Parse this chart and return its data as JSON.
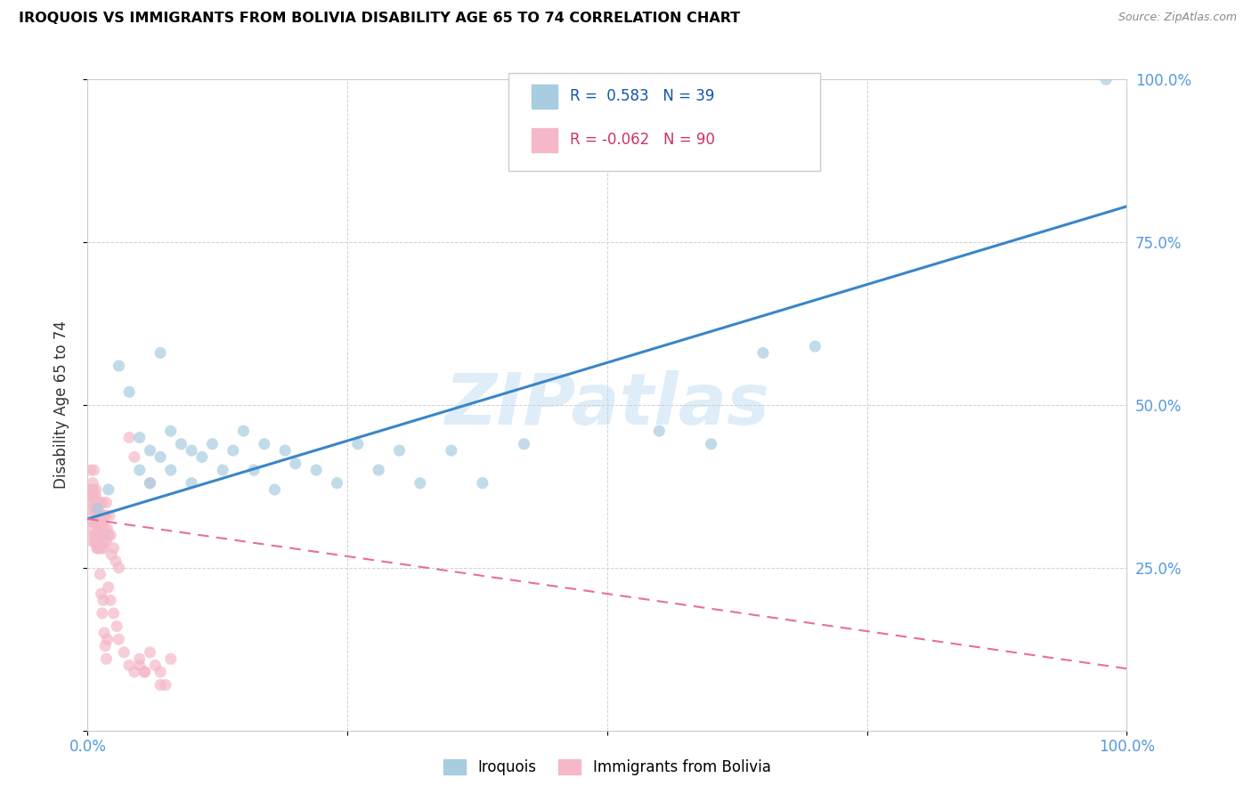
{
  "title": "IROQUOIS VS IMMIGRANTS FROM BOLIVIA DISABILITY AGE 65 TO 74 CORRELATION CHART",
  "source": "Source: ZipAtlas.com",
  "ylabel": "Disability Age 65 to 74",
  "xlim": [
    0,
    1.0
  ],
  "ylim": [
    0,
    1.0
  ],
  "xticks": [
    0.0,
    0.25,
    0.5,
    0.75,
    1.0
  ],
  "xticklabels": [
    "0.0%",
    "",
    "",
    "",
    "100.0%"
  ],
  "yticks": [
    0.0,
    0.25,
    0.5,
    0.75,
    1.0
  ],
  "yticklabels_right": [
    "",
    "25.0%",
    "50.0%",
    "75.0%",
    "100.0%"
  ],
  "legend_labels": [
    "Iroquois",
    "Immigrants from Bolivia"
  ],
  "iroquois_color": "#a8cce0",
  "bolivia_color": "#f4b8c8",
  "iroquois_line_color": "#3a86c8",
  "bolivia_line_color": "#e87090",
  "watermark_text": "ZIPatlas",
  "r_iroquois": 0.583,
  "n_iroquois": 39,
  "r_bolivia": -0.062,
  "n_bolivia": 90,
  "iroquois_trend_x0": 0.0,
  "iroquois_trend_y0": 0.325,
  "iroquois_trend_x1": 1.0,
  "iroquois_trend_y1": 0.805,
  "bolivia_trend_x0": 0.0,
  "bolivia_trend_y0": 0.325,
  "bolivia_trend_x1": 1.0,
  "bolivia_trend_y1": 0.095,
  "iroquois_x": [
    0.01,
    0.02,
    0.03,
    0.04,
    0.05,
    0.05,
    0.06,
    0.06,
    0.07,
    0.08,
    0.08,
    0.09,
    0.1,
    0.1,
    0.11,
    0.12,
    0.13,
    0.14,
    0.15,
    0.16,
    0.17,
    0.18,
    0.19,
    0.2,
    0.22,
    0.24,
    0.26,
    0.28,
    0.3,
    0.32,
    0.35,
    0.38,
    0.42,
    0.55,
    0.6,
    0.65,
    0.7,
    0.98,
    0.07
  ],
  "iroquois_y": [
    0.34,
    0.37,
    0.56,
    0.52,
    0.45,
    0.4,
    0.43,
    0.38,
    0.42,
    0.46,
    0.4,
    0.44,
    0.43,
    0.38,
    0.42,
    0.44,
    0.4,
    0.43,
    0.46,
    0.4,
    0.44,
    0.37,
    0.43,
    0.41,
    0.4,
    0.38,
    0.44,
    0.4,
    0.43,
    0.38,
    0.43,
    0.38,
    0.44,
    0.46,
    0.44,
    0.58,
    0.59,
    1.0,
    0.58
  ],
  "bolivia_x": [
    0.003,
    0.004,
    0.004,
    0.005,
    0.005,
    0.005,
    0.006,
    0.006,
    0.006,
    0.007,
    0.007,
    0.007,
    0.007,
    0.008,
    0.008,
    0.008,
    0.008,
    0.009,
    0.009,
    0.009,
    0.009,
    0.01,
    0.01,
    0.01,
    0.01,
    0.011,
    0.011,
    0.011,
    0.012,
    0.012,
    0.013,
    0.013,
    0.014,
    0.014,
    0.015,
    0.015,
    0.015,
    0.016,
    0.016,
    0.017,
    0.018,
    0.018,
    0.019,
    0.02,
    0.021,
    0.022,
    0.023,
    0.025,
    0.027,
    0.03,
    0.003,
    0.004,
    0.005,
    0.005,
    0.006,
    0.007,
    0.008,
    0.009,
    0.01,
    0.01,
    0.011,
    0.012,
    0.013,
    0.014,
    0.015,
    0.016,
    0.017,
    0.018,
    0.019,
    0.02,
    0.022,
    0.025,
    0.028,
    0.03,
    0.035,
    0.04,
    0.045,
    0.05,
    0.055,
    0.06,
    0.065,
    0.07,
    0.075,
    0.04,
    0.045,
    0.05,
    0.055,
    0.06,
    0.07,
    0.08
  ],
  "bolivia_y": [
    0.36,
    0.34,
    0.31,
    0.37,
    0.29,
    0.32,
    0.36,
    0.3,
    0.33,
    0.35,
    0.29,
    0.32,
    0.34,
    0.36,
    0.29,
    0.32,
    0.34,
    0.3,
    0.28,
    0.33,
    0.35,
    0.32,
    0.3,
    0.28,
    0.35,
    0.31,
    0.33,
    0.29,
    0.32,
    0.35,
    0.3,
    0.28,
    0.32,
    0.35,
    0.3,
    0.28,
    0.33,
    0.31,
    0.29,
    0.33,
    0.29,
    0.35,
    0.31,
    0.3,
    0.33,
    0.3,
    0.27,
    0.28,
    0.26,
    0.25,
    0.4,
    0.37,
    0.35,
    0.38,
    0.4,
    0.3,
    0.37,
    0.33,
    0.28,
    0.3,
    0.31,
    0.24,
    0.21,
    0.18,
    0.2,
    0.15,
    0.13,
    0.11,
    0.14,
    0.22,
    0.2,
    0.18,
    0.16,
    0.14,
    0.12,
    0.1,
    0.09,
    0.11,
    0.09,
    0.12,
    0.1,
    0.09,
    0.07,
    0.45,
    0.42,
    0.1,
    0.09,
    0.38,
    0.07,
    0.11
  ]
}
